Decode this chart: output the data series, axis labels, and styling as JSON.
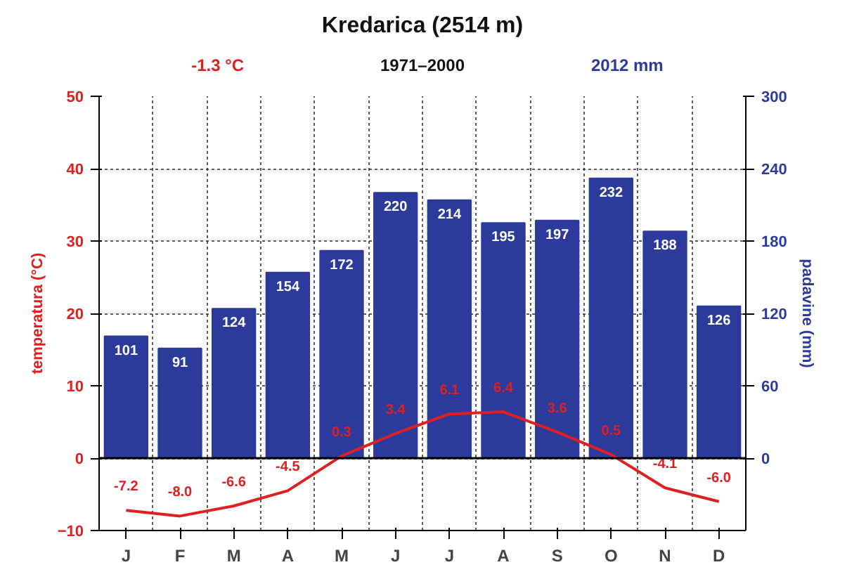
{
  "chart_data": {
    "type": "bar",
    "title": "Kredarica (2514 m)",
    "subtitle": "1971–2000",
    "annotations": [
      "-1.3 °C",
      "2012 mm"
    ],
    "categories": [
      "J",
      "F",
      "M",
      "A",
      "M",
      "J",
      "J",
      "A",
      "S",
      "O",
      "N",
      "D"
    ],
    "series": [
      {
        "axis": "y2",
        "color": "#2b3a9b",
        "values": [
          101,
          91,
          124,
          154,
          172,
          220,
          214,
          195,
          197,
          232,
          188,
          126
        ],
        "data_labels": true
      },
      {
        "type": "line",
        "axis": "y",
        "color": "#e02020",
        "values": [
          -7.2,
          -8.0,
          -6.6,
          -4.5,
          0.3,
          3.4,
          6.1,
          6.4,
          3.6,
          0.5,
          -4.1,
          -6.0
        ],
        "data_labels": true,
        "value_labels": [
          "-7.2",
          "-8.0",
          "-6.6",
          "-4.5",
          "0.3",
          "3.4",
          "6.1",
          "6.4",
          "3.6",
          "0.5",
          "-4.1",
          "-6.0"
        ]
      }
    ],
    "ylabel": "temperatura (°C)",
    "y2label": "padavine (mm)",
    "ylim": [
      -10,
      50
    ],
    "yticks": [
      -10,
      0,
      10,
      20,
      30,
      40,
      50
    ],
    "y2lim": [
      -60,
      300
    ],
    "y2ticks": [
      0,
      60,
      120,
      180,
      240,
      300
    ],
    "ref_lines": [
      {
        "axis": "y",
        "value": 0,
        "color": "#000000"
      }
    ],
    "grid": true
  }
}
